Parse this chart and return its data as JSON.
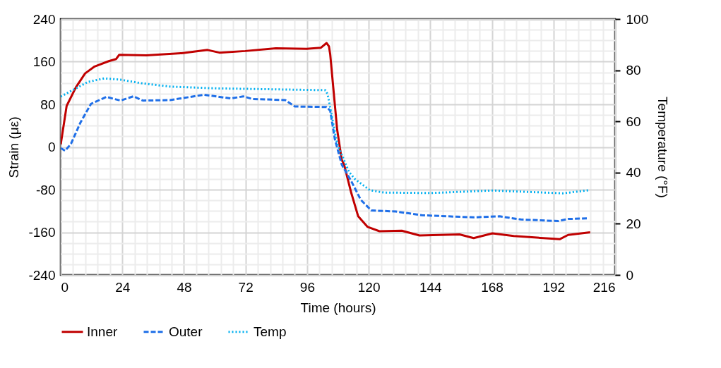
{
  "chart_data": {
    "type": "line",
    "xlabel": "Time (hours)",
    "ylabel": "Strain (με)",
    "y2label": "Temperature (°F)",
    "xlim": [
      0,
      216
    ],
    "xticks": [
      0,
      24,
      48,
      72,
      96,
      120,
      144,
      168,
      192,
      216
    ],
    "ylim": [
      -240,
      240
    ],
    "yticks": [
      -240,
      -160,
      -80,
      0,
      80,
      160,
      240
    ],
    "y2lim": [
      0,
      100
    ],
    "y2ticks": [
      0,
      20,
      40,
      60,
      80,
      100
    ],
    "grid": true,
    "legend": "bottom",
    "series": [
      {
        "name": "Inner",
        "color": "#c00000",
        "line_style": "solid",
        "x": [
          0,
          2.3,
          5.9,
          9.5,
          13.2,
          18.7,
          21.6,
          22.8,
          33.4,
          47.1,
          57.2,
          61.8,
          71.9,
          83.8,
          95.8,
          101.3,
          103.6,
          104.5,
          105,
          107.7,
          109.5,
          110.4,
          113.2,
          115.9,
          119.6,
          124.2,
          132.9,
          139.8,
          155.4,
          160.9,
          168.2,
          176.5,
          194.4,
          197.7,
          206.3
        ],
        "values": [
          5,
          77,
          112,
          138,
          151,
          161,
          165,
          173,
          172,
          176,
          182,
          177,
          180,
          185,
          184,
          186,
          195,
          189,
          174,
          33,
          -24,
          -33,
          -86,
          -130,
          -150,
          -158,
          -157,
          -166,
          -164,
          -171,
          -162,
          -167,
          -173,
          -165,
          -160
        ]
      },
      {
        "name": "Outer",
        "color": "#1f6fe8",
        "line_style": "dashed",
        "x": [
          0,
          1.7,
          4,
          7.7,
          11.8,
          17.8,
          23.3,
          28.3,
          32,
          42.6,
          55.9,
          66.4,
          71.1,
          74.7,
          87.5,
          91.2,
          103.6,
          105,
          106.8,
          109.5,
          113.2,
          116.9,
          121,
          130.6,
          140.7,
          160.9,
          171,
          179.3,
          193.9,
          197.7,
          205
        ],
        "values": [
          -2,
          -7,
          6,
          46,
          81,
          94,
          87,
          95,
          87,
          88,
          98,
          91,
          95,
          90,
          88,
          76,
          75,
          68,
          15,
          -33,
          -64,
          -99,
          -119,
          -121,
          -128,
          -132,
          -130,
          -136,
          -139,
          -135,
          -134
        ]
      },
      {
        "name": "Temp",
        "color": "#00b0f0",
        "line_style": "dotted",
        "axis": "y2",
        "x": [
          0,
          5.9,
          10.5,
          16.9,
          23.3,
          31.5,
          42.6,
          60.9,
          79.3,
          103.1,
          104,
          105.4,
          107.7,
          112.3,
          114.6,
          120.5,
          126,
          144.4,
          168.2,
          195.7,
          205.8
        ],
        "values": [
          69.7,
          72.9,
          75.4,
          76.8,
          76.3,
          74.9,
          73.6,
          72.9,
          72.6,
          72.2,
          70.6,
          63.3,
          51.3,
          40.3,
          37.5,
          33.1,
          32.2,
          32,
          33,
          31.9,
          33.1
        ]
      }
    ]
  }
}
